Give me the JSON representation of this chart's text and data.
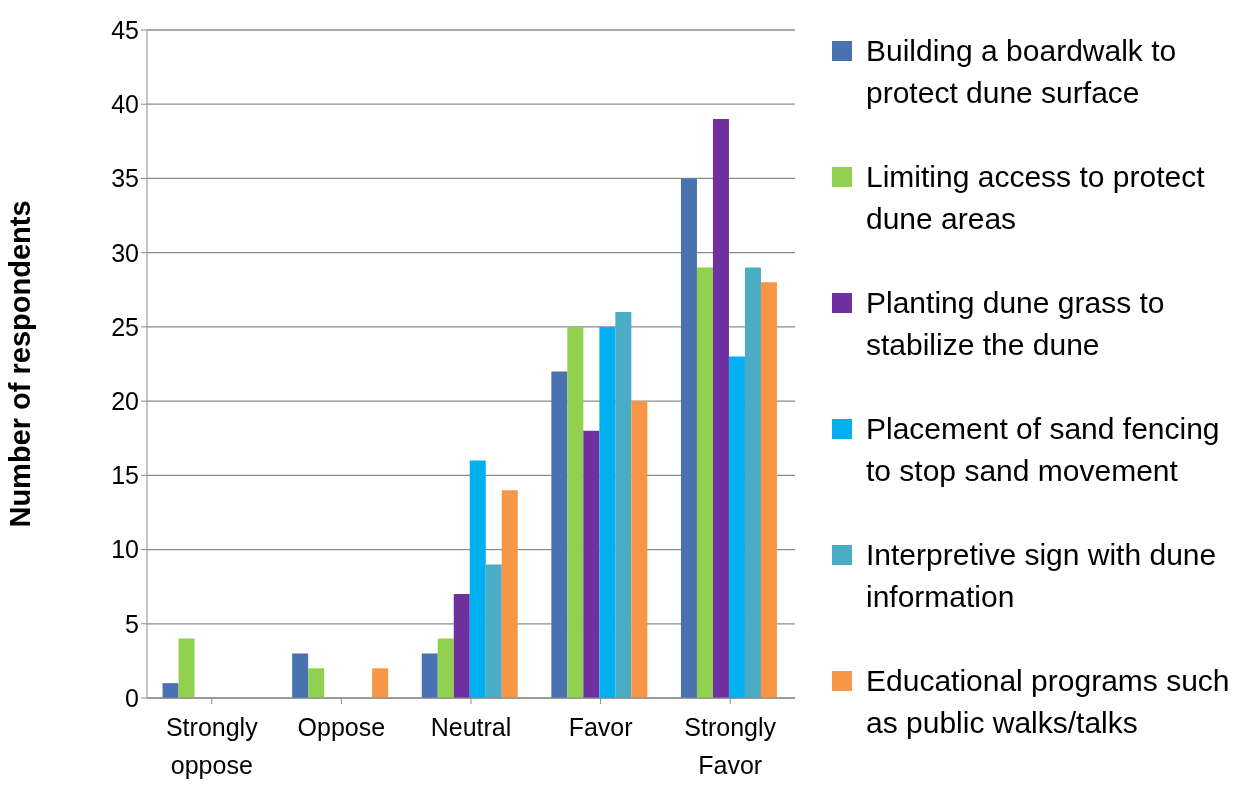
{
  "chart_data": {
    "type": "bar",
    "ylabel": "Number of respondents",
    "categories": [
      "Strongly oppose",
      "Oppose",
      "Neutral",
      "Favor",
      "Strongly Favor"
    ],
    "series": [
      {
        "name": "Building a boardwalk to protect dune surface",
        "color": "#4a72b0",
        "values": [
          1,
          3,
          3,
          22,
          35
        ]
      },
      {
        "name": "Limiting access to protect dune areas",
        "color": "#92d050",
        "values": [
          4,
          2,
          4,
          25,
          29
        ]
      },
      {
        "name": "Planting dune grass to stabilize the dune",
        "color": "#7030a0",
        "values": [
          0,
          0,
          7,
          18,
          39
        ]
      },
      {
        "name": "Placement of sand fencing to stop sand movement",
        "color": "#00b0f0",
        "values": [
          0,
          0,
          16,
          25,
          23
        ]
      },
      {
        "name": "Interpretive sign with dune information",
        "color": "#4bacc6",
        "values": [
          0,
          0,
          9,
          26,
          29
        ]
      },
      {
        "name": "Educational programs such as public walks/talks",
        "color": "#f79646",
        "values": [
          0,
          2,
          14,
          20,
          28
        ]
      }
    ],
    "ylim": [
      0,
      45
    ],
    "yticks": [
      0,
      5,
      10,
      15,
      20,
      25,
      30,
      35,
      40,
      45
    ],
    "grid": "y",
    "legend": "right"
  }
}
